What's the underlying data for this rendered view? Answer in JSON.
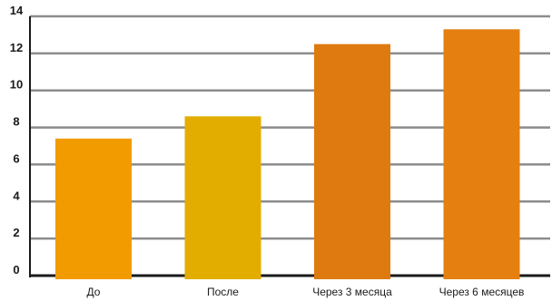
{
  "chart_data": {
    "type": "bar",
    "title": "",
    "xlabel": "",
    "ylabel": "",
    "categories": [
      "До",
      "После",
      "Через 3 месяца",
      "Через 6 месяцев"
    ],
    "values": [
      7.4,
      8.6,
      12.5,
      13.3
    ],
    "bar_colors": [
      "#f29b00",
      "#e3ad00",
      "#de7a10",
      "#e47f10"
    ],
    "ylim": [
      0,
      14
    ],
    "yticks": [
      "0",
      "2",
      "4",
      "6",
      "8",
      "10",
      "12",
      "14"
    ],
    "grid": true,
    "grid_color": "#8c8c8c",
    "axis_color": "#1a1a1a"
  }
}
